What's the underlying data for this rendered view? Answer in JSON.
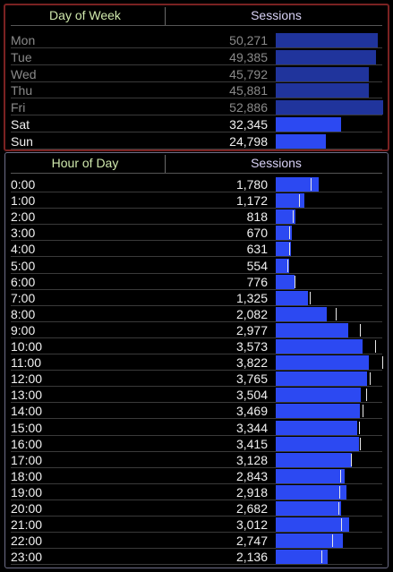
{
  "day_of_week": {
    "header_label": "Day of Week",
    "header_value": "Sessions",
    "rows": [
      {
        "label": "Mon",
        "value": "50,271",
        "n": 50271,
        "dim": true
      },
      {
        "label": "Tue",
        "value": "49,385",
        "n": 49385,
        "dim": true
      },
      {
        "label": "Wed",
        "value": "45,792",
        "n": 45792,
        "dim": true
      },
      {
        "label": "Thu",
        "value": "45,881",
        "n": 45881,
        "dim": true
      },
      {
        "label": "Fri",
        "value": "52,886",
        "n": 52886,
        "dim": true
      },
      {
        "label": "Sat",
        "value": "32,345",
        "n": 32345,
        "dim": false
      },
      {
        "label": "Sun",
        "value": "24,798",
        "n": 24798,
        "dim": false
      }
    ]
  },
  "hour_of_day": {
    "header_label": "Hour of Day",
    "header_value": "Sessions",
    "rows": [
      {
        "label": "0:00",
        "value": "1,780",
        "n": 1780,
        "marker": 1440
      },
      {
        "label": "1:00",
        "value": "1,172",
        "n": 1172,
        "marker": 960
      },
      {
        "label": "2:00",
        "value": "818",
        "n": 818,
        "marker": 700
      },
      {
        "label": "3:00",
        "value": "670",
        "n": 670,
        "marker": 560
      },
      {
        "label": "4:00",
        "value": "631",
        "n": 631,
        "marker": 540
      },
      {
        "label": "5:00",
        "value": "554",
        "n": 554,
        "marker": 480
      },
      {
        "label": "6:00",
        "value": "776",
        "n": 776,
        "marker": 760
      },
      {
        "label": "7:00",
        "value": "1,325",
        "n": 1325,
        "marker": 1400
      },
      {
        "label": "8:00",
        "value": "2,082",
        "n": 2082,
        "marker": 2480
      },
      {
        "label": "9:00",
        "value": "2,977",
        "n": 2977,
        "marker": 3480
      },
      {
        "label": "10:00",
        "value": "3,573",
        "n": 3573,
        "marker": 4080
      },
      {
        "label": "11:00",
        "value": "3,822",
        "n": 3822,
        "marker": 4380
      },
      {
        "label": "12:00",
        "value": "3,765",
        "n": 3765,
        "marker": 3880
      },
      {
        "label": "13:00",
        "value": "3,504",
        "n": 3504,
        "marker": 3720
      },
      {
        "label": "14:00",
        "value": "3,469",
        "n": 3469,
        "marker": 3580
      },
      {
        "label": "15:00",
        "value": "3,344",
        "n": 3344,
        "marker": 3420
      },
      {
        "label": "16:00",
        "value": "3,415",
        "n": 3415,
        "marker": 3480
      },
      {
        "label": "17:00",
        "value": "3,128",
        "n": 3128,
        "marker": 3080
      },
      {
        "label": "18:00",
        "value": "2,843",
        "n": 2843,
        "marker": 2640
      },
      {
        "label": "19:00",
        "value": "2,918",
        "n": 2918,
        "marker": 2620
      },
      {
        "label": "20:00",
        "value": "2,682",
        "n": 2682,
        "marker": 2580
      },
      {
        "label": "21:00",
        "value": "3,012",
        "n": 3012,
        "marker": 2700
      },
      {
        "label": "22:00",
        "value": "2,747",
        "n": 2747,
        "marker": 2320
      },
      {
        "label": "23:00",
        "value": "2,136",
        "n": 2136,
        "marker": 1880
      }
    ]
  },
  "colors": {
    "bar": "#2c49f2",
    "bar_dim": "#20349c",
    "header_text": "#cfe8ac",
    "header_text_right": "#d8d2f6",
    "panel_border_top": "#7a2222",
    "panel_border_bottom": "#6e6e88"
  }
}
